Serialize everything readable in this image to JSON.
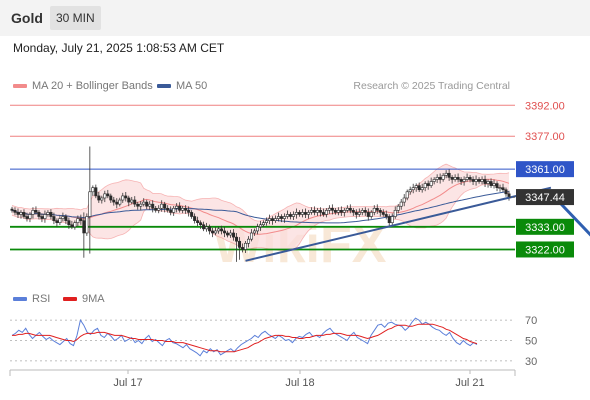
{
  "header": {
    "instrument": "Gold",
    "interval": "30 MIN",
    "datetime": "Monday, July 21, 2025 1:08:53 AM CET"
  },
  "legend": {
    "ma20_bb": "MA 20 + Bollinger Bands",
    "ma50": "MA 50",
    "credit": "Research © 2025 Trading Central"
  },
  "rsi_legend": {
    "rsi": "RSI",
    "ma9": "9MA"
  },
  "watermark": "WikiFX",
  "colors": {
    "bollinger": "#f28b8b",
    "ma50": "#3a5a98",
    "support": "#0a8a0a",
    "resistance": "#ef8080",
    "pivot": "#2f55c8",
    "arrow": "#2f5fb0",
    "rsi": "#5b7fd9",
    "rsi_ma": "#e02020"
  },
  "chart_data": [
    {
      "type": "candlestick",
      "x_labels": [
        "Jul 17",
        "Jul 18",
        "Jul 21"
      ],
      "ylim": [
        3313,
        3397
      ],
      "last_price": {
        "label": "3347.44",
        "value": 3347.44
      },
      "levels": [
        {
          "label": "3392.00",
          "value": 3392.0,
          "kind": "resistance"
        },
        {
          "label": "3377.00",
          "value": 3377.0,
          "kind": "resistance"
        },
        {
          "label": "3361.00",
          "value": 3361.0,
          "kind": "pivot"
        },
        {
          "label": "3333.00",
          "value": 3333.0,
          "kind": "support"
        },
        {
          "label": "3322.00",
          "value": 3322.0,
          "kind": "support"
        }
      ],
      "trendline": [
        [
          78,
          3316.5
        ],
        [
          180,
          3352.0
        ]
      ],
      "forecast_arrow": {
        "from": [
          182,
          3346.2
        ],
        "to": [
          196,
          3323.5
        ]
      },
      "closes": [
        3341,
        3340,
        3339,
        3340,
        3338,
        3337,
        3339,
        3341,
        3340,
        3338,
        3337,
        3339,
        3340,
        3338,
        3336,
        3335,
        3337,
        3338,
        3336,
        3334,
        3333,
        3335,
        3337,
        3336,
        3330,
        3338,
        3350,
        3352,
        3348,
        3346,
        3347,
        3349,
        3348,
        3346,
        3345,
        3344,
        3346,
        3348,
        3347,
        3345,
        3346,
        3344,
        3343,
        3344,
        3345,
        3343,
        3344,
        3342,
        3341,
        3342,
        3344,
        3342,
        3341,
        3340,
        3342,
        3343,
        3341,
        3342,
        3341,
        3340,
        3338,
        3336,
        3335,
        3334,
        3332,
        3333,
        3331,
        3330,
        3331,
        3332,
        3331,
        3330,
        3329,
        3330,
        3328,
        3326,
        3323,
        3322,
        3325,
        3327,
        3330,
        3331,
        3333,
        3334,
        3335,
        3336,
        3337,
        3336,
        3337,
        3338,
        3337,
        3338,
        3339,
        3338,
        3339,
        3340,
        3339,
        3340,
        3339,
        3340,
        3341,
        3340,
        3341,
        3340,
        3339,
        3341,
        3342,
        3341,
        3340,
        3341,
        3340,
        3341,
        3342,
        3341,
        3340,
        3339,
        3340,
        3341,
        3340,
        3338,
        3340,
        3342,
        3341,
        3340,
        3339,
        3338,
        3335,
        3338,
        3341,
        3343,
        3345,
        3347,
        3350,
        3351,
        3352,
        3353,
        3351,
        3352,
        3354,
        3353,
        3355,
        3356,
        3357,
        3356,
        3358,
        3359,
        3357,
        3356,
        3357,
        3356,
        3355,
        3356,
        3357,
        3356,
        3355,
        3356,
        3355,
        3356,
        3354,
        3355,
        3353,
        3354,
        3352,
        3352,
        3351,
        3349,
        3347.44
      ],
      "title": "",
      "xlabel": "",
      "ylabel": ""
    },
    {
      "type": "line",
      "name": "RSI panel",
      "ylim": [
        25,
        77
      ],
      "y_ticks": [
        70,
        50,
        30
      ],
      "series": [
        {
          "name": "RSI",
          "values": [
            55,
            57,
            60,
            58,
            62,
            56,
            52,
            55,
            58,
            54,
            51,
            53,
            50,
            48,
            46,
            49,
            52,
            47,
            45,
            55,
            70,
            65,
            58,
            56,
            60,
            62,
            55,
            53,
            57,
            54,
            50,
            52,
            55,
            49,
            51,
            53,
            48,
            50,
            47,
            52,
            55,
            49,
            51,
            48,
            45,
            50,
            52,
            48,
            47,
            45,
            43,
            46,
            42,
            40,
            38,
            35,
            40,
            38,
            42,
            39,
            41,
            36,
            38,
            40,
            42,
            39,
            43,
            46,
            48,
            50,
            52,
            55,
            53,
            57,
            59,
            56,
            54,
            52,
            55,
            53,
            50,
            51,
            48,
            52,
            54,
            53,
            56,
            58,
            54,
            55,
            53,
            57,
            60,
            62,
            58,
            56,
            54,
            52,
            50,
            55,
            58,
            53,
            51,
            49,
            47,
            55,
            60,
            65,
            66,
            63,
            67,
            68,
            66,
            65,
            64,
            60,
            63,
            68,
            72,
            70,
            66,
            68,
            66,
            63,
            61,
            60,
            57,
            55,
            58,
            52,
            48,
            46,
            50,
            47,
            45,
            48,
            46
          ]
        },
        {
          "name": "9MA",
          "values": [
            55,
            55,
            56,
            56,
            57,
            57,
            56,
            55,
            55,
            55,
            55,
            55,
            54,
            53,
            52,
            51,
            50,
            50,
            49,
            51,
            54,
            56,
            57,
            57,
            57,
            58,
            58,
            58,
            57,
            56,
            55,
            55,
            55,
            54,
            53,
            52,
            52,
            51,
            51,
            51,
            51,
            51,
            50,
            50,
            50,
            49,
            49,
            49,
            48,
            48,
            48,
            47,
            46,
            45,
            44,
            43,
            42,
            41,
            40,
            40,
            40,
            39,
            39,
            39,
            39,
            39,
            40,
            41,
            42,
            43,
            45,
            47,
            48,
            50,
            52,
            53,
            54,
            55,
            55,
            55,
            54,
            54,
            53,
            53,
            52,
            52,
            53,
            53,
            54,
            55,
            55,
            55,
            56,
            56,
            57,
            57,
            57,
            56,
            55,
            55,
            55,
            55,
            54,
            53,
            52,
            53,
            54,
            55,
            57,
            59,
            61,
            62,
            64,
            65,
            65,
            65,
            64,
            64,
            65,
            66,
            66,
            66,
            66,
            66,
            65,
            64,
            63,
            61,
            60,
            58,
            56,
            54,
            52,
            51,
            49,
            48,
            47
          ]
        }
      ]
    }
  ]
}
